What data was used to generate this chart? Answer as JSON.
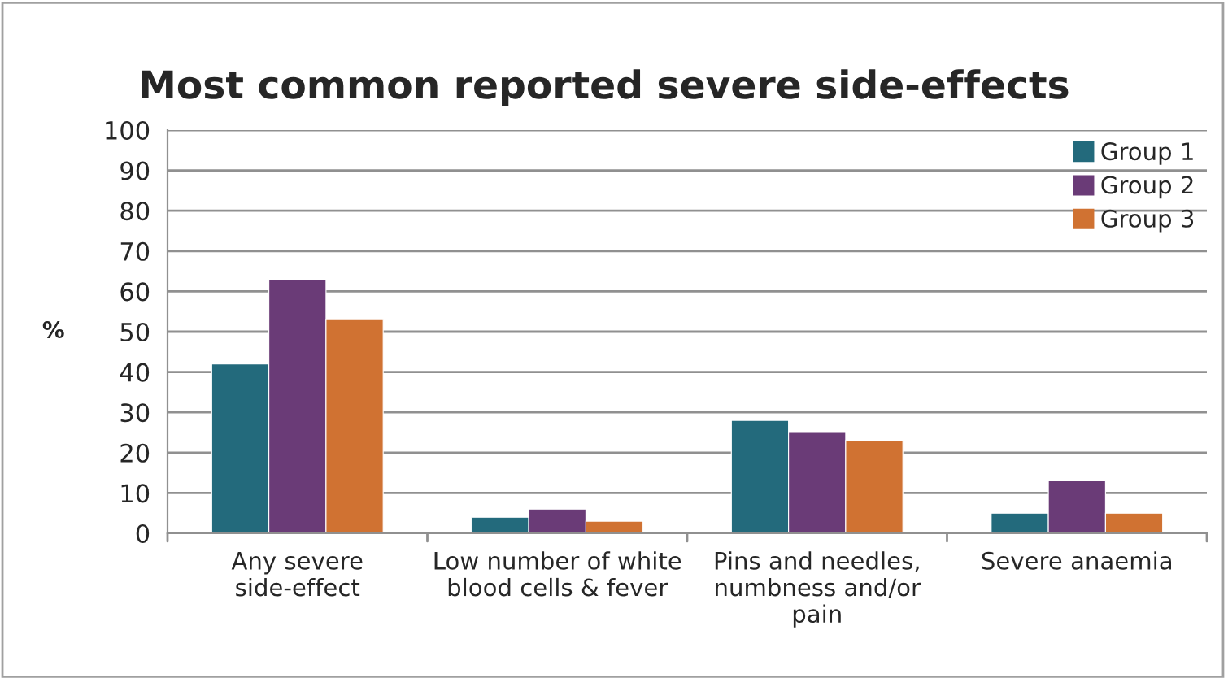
{
  "chart_data": {
    "type": "bar",
    "title": "Most common reported severe side-effects",
    "ylabel": "%",
    "categories": [
      "Any severe side-effect",
      "Low number of white blood cells & fever",
      "Pins and needles, numbness and/or pain",
      "Severe anaemia"
    ],
    "series": [
      {
        "name": "Group 1",
        "color": "#236a7c",
        "values": [
          42,
          4,
          28,
          5
        ]
      },
      {
        "name": "Group 2",
        "color": "#6a3b77",
        "values": [
          63,
          6,
          25,
          13
        ]
      },
      {
        "name": "Group 3",
        "color": "#d07232",
        "values": [
          53,
          3,
          23,
          5
        ]
      }
    ],
    "ylim": [
      0,
      100
    ],
    "yticks": [
      0,
      10,
      20,
      30,
      40,
      50,
      60,
      70,
      80,
      90,
      100
    ],
    "grid": "y",
    "legend": "top right"
  }
}
